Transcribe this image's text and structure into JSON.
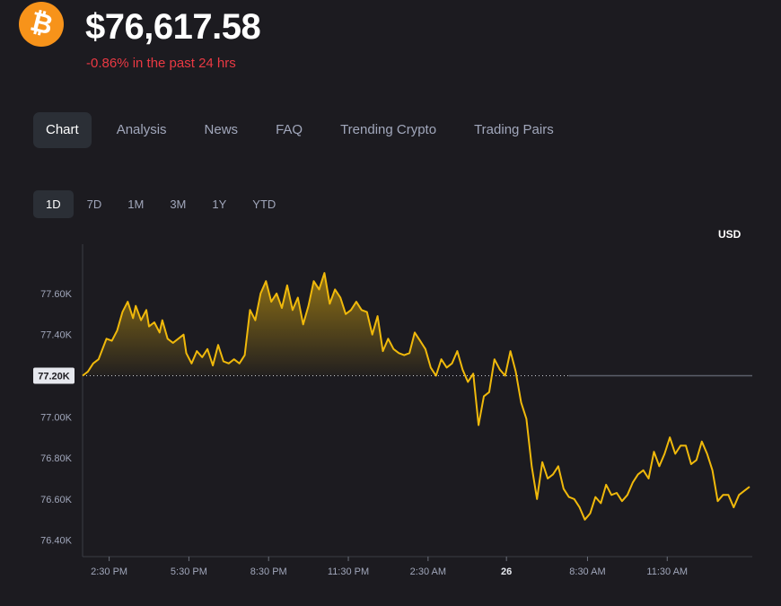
{
  "header": {
    "coin_icon": "bitcoin-icon",
    "coin_symbol": "₿",
    "price": "$76,617.58",
    "change_text": "-0.86% in the past 24 hrs",
    "change_color": "#ea3943"
  },
  "tabs": [
    {
      "label": "Chart",
      "active": true
    },
    {
      "label": "Analysis",
      "active": false
    },
    {
      "label": "News",
      "active": false
    },
    {
      "label": "FAQ",
      "active": false
    },
    {
      "label": "Trending Crypto",
      "active": false
    },
    {
      "label": "Trading Pairs",
      "active": false
    }
  ],
  "ranges": [
    {
      "label": "1D",
      "active": true
    },
    {
      "label": "7D",
      "active": false
    },
    {
      "label": "1M",
      "active": false
    },
    {
      "label": "3M",
      "active": false
    },
    {
      "label": "1Y",
      "active": false
    },
    {
      "label": "YTD",
      "active": false
    }
  ],
  "chart_data": {
    "type": "line",
    "currency_label": "USD",
    "line_color": "#f0b90b",
    "baseline": 77200,
    "baseline_label": "77.20K",
    "ylim": [
      76320,
      77840
    ],
    "yticks": [
      {
        "value": 77600,
        "label": "77.60K"
      },
      {
        "value": 77400,
        "label": "77.40K"
      },
      {
        "value": 77000,
        "label": "77.00K"
      },
      {
        "value": 76800,
        "label": "76.80K"
      },
      {
        "value": 76600,
        "label": "76.60K"
      },
      {
        "value": 76400,
        "label": "76.40K"
      }
    ],
    "xlim": [
      0,
      25.2
    ],
    "xticks": [
      {
        "value": 1,
        "label": "2:30 PM",
        "bold": false
      },
      {
        "value": 4,
        "label": "5:30 PM",
        "bold": false
      },
      {
        "value": 7,
        "label": "8:30 PM",
        "bold": false
      },
      {
        "value": 10,
        "label": "11:30 PM",
        "bold": false
      },
      {
        "value": 13,
        "label": "2:30 AM",
        "bold": false
      },
      {
        "value": 15.95,
        "label": "26",
        "bold": true
      },
      {
        "value": 19,
        "label": "8:30 AM",
        "bold": false
      },
      {
        "value": 22,
        "label": "11:30 AM",
        "bold": false
      }
    ],
    "x": [
      0,
      0.2,
      0.4,
      0.6,
      0.9,
      1.1,
      1.3,
      1.5,
      1.7,
      1.9,
      2.0,
      2.2,
      2.4,
      2.5,
      2.7,
      2.9,
      3.0,
      3.2,
      3.4,
      3.6,
      3.8,
      3.9,
      4.1,
      4.3,
      4.5,
      4.7,
      4.9,
      5.1,
      5.3,
      5.5,
      5.7,
      5.9,
      6.1,
      6.3,
      6.5,
      6.7,
      6.9,
      7.1,
      7.3,
      7.5,
      7.7,
      7.9,
      8.1,
      8.3,
      8.5,
      8.7,
      8.9,
      9.1,
      9.3,
      9.5,
      9.7,
      9.9,
      10.1,
      10.3,
      10.5,
      10.7,
      10.9,
      11.1,
      11.3,
      11.5,
      11.7,
      11.9,
      12.1,
      12.3,
      12.5,
      12.7,
      12.9,
      13.1,
      13.3,
      13.5,
      13.7,
      13.9,
      14.1,
      14.3,
      14.5,
      14.7,
      14.9,
      15.1,
      15.3,
      15.5,
      15.7,
      15.9,
      16.1,
      16.3,
      16.5,
      16.7,
      16.9,
      17.1,
      17.3,
      17.5,
      17.7,
      17.9,
      18.1,
      18.3,
      18.5,
      18.7,
      18.9,
      19.1,
      19.3,
      19.5,
      19.7,
      19.9,
      20.1,
      20.3,
      20.5,
      20.7,
      20.9,
      21.1,
      21.3,
      21.5,
      21.7,
      21.9,
      22.1,
      22.3,
      22.5,
      22.7,
      22.9,
      23.1,
      23.3,
      23.5,
      23.7,
      23.9,
      24.1,
      24.3,
      24.5,
      24.7,
      24.9,
      25.1
    ],
    "y": [
      77200,
      77220,
      77260,
      77280,
      77380,
      77370,
      77420,
      77510,
      77560,
      77480,
      77540,
      77470,
      77520,
      77440,
      77460,
      77410,
      77470,
      77380,
      77360,
      77380,
      77400,
      77310,
      77260,
      77320,
      77290,
      77330,
      77250,
      77350,
      77270,
      77260,
      77280,
      77260,
      77300,
      77520,
      77470,
      77600,
      77660,
      77560,
      77600,
      77530,
      77640,
      77520,
      77580,
      77450,
      77540,
      77660,
      77620,
      77700,
      77550,
      77620,
      77580,
      77500,
      77520,
      77560,
      77520,
      77510,
      77400,
      77490,
      77320,
      77380,
      77330,
      77310,
      77300,
      77310,
      77410,
      77370,
      77330,
      77240,
      77200,
      77280,
      77240,
      77260,
      77320,
      77230,
      77170,
      77210,
      76960,
      77100,
      77120,
      77280,
      77230,
      77200,
      77320,
      77220,
      77070,
      76990,
      76760,
      76600,
      76780,
      76700,
      76720,
      76760,
      76650,
      76610,
      76600,
      76560,
      76500,
      76530,
      76610,
      76580,
      76670,
      76620,
      76630,
      76590,
      76620,
      76680,
      76720,
      76740,
      76700,
      76830,
      76760,
      76820,
      76900,
      76820,
      76860,
      76860,
      76770,
      76790,
      76880,
      76820,
      76740,
      76590,
      76620,
      76620,
      76560,
      76620,
      76640,
      76660
    ]
  }
}
